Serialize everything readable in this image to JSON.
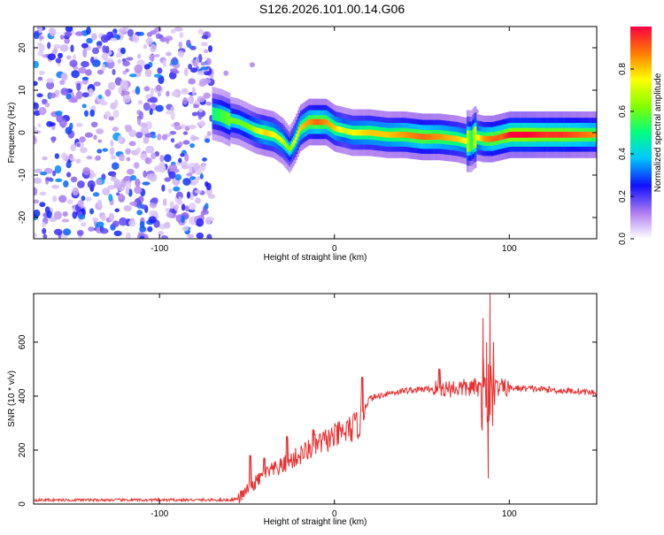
{
  "title": "S126.2026.101.00.14.G06",
  "chart_data": [
    {
      "type": "heatmap",
      "name": "spectrogram",
      "xlabel": "Height of straight line (km)",
      "ylabel": "Frequency (Hz)",
      "xlim": [
        -172,
        150
      ],
      "ylim": [
        -25,
        25
      ],
      "x_ticks": [
        -100,
        0,
        100
      ],
      "x_tick_labels": [
        "-100",
        "0",
        "100"
      ],
      "y_ticks": [
        -20,
        -10,
        0,
        10,
        20
      ],
      "y_tick_labels": [
        "-20",
        "-10",
        "0",
        "10",
        "20"
      ],
      "colorbar": {
        "label": "Normalized spectral amplitude",
        "range": [
          0,
          1
        ],
        "ticks": [
          0.0,
          0.2,
          0.4,
          0.6,
          0.8
        ],
        "tick_labels": [
          "0.0",
          "0.2",
          "0.4",
          "0.6",
          "0.8"
        ]
      },
      "noise_region_x": [
        -172,
        -70
      ],
      "ridge": {
        "x": [
          -70,
          -65,
          -60,
          -55,
          -50,
          -45,
          -40,
          -35,
          -30,
          -26,
          -23,
          -20,
          -15,
          -10,
          -5,
          0,
          5,
          10,
          20,
          30,
          40,
          50,
          60,
          70,
          75,
          78,
          80,
          85,
          90,
          95,
          100,
          110,
          120,
          130,
          140,
          150
        ],
        "freq": [
          4.5,
          4,
          3,
          2.5,
          1.5,
          0.5,
          0,
          -0.5,
          -2,
          -4,
          -2,
          1,
          2.5,
          2.5,
          2.5,
          1,
          0.5,
          0,
          0,
          -0.5,
          -0.5,
          -1,
          -1,
          -1.5,
          -2,
          -2,
          -1,
          -1.5,
          -1.5,
          -1,
          -0.5,
          -0.5,
          -0.5,
          -0.5,
          -0.5,
          -0.5
        ],
        "amplitude": [
          0.5,
          0.55,
          0.6,
          0.6,
          0.6,
          0.7,
          0.8,
          0.75,
          0.7,
          0.6,
          0.75,
          0.8,
          0.85,
          0.9,
          0.85,
          0.8,
          0.7,
          0.75,
          0.8,
          0.8,
          0.85,
          0.9,
          0.85,
          0.8,
          0.75,
          0.5,
          0.7,
          0.85,
          0.9,
          0.9,
          1.0,
          1.0,
          0.95,
          0.95,
          0.9,
          0.85
        ]
      }
    },
    {
      "type": "line",
      "name": "snr",
      "xlabel": "Height of straight line (km)",
      "ylabel": "SNR (10 * v/v)",
      "xlim": [
        -172,
        150
      ],
      "ylim": [
        0,
        780
      ],
      "x_ticks": [
        -100,
        0,
        100
      ],
      "x_tick_labels": [
        "-100",
        "0",
        "100"
      ],
      "y_ticks": [
        0,
        200,
        400,
        600
      ],
      "y_tick_labels": [
        "0",
        "200",
        "400",
        "600"
      ],
      "color": "#e83030",
      "trend": {
        "x": [
          -172,
          -100,
          -60,
          -55,
          -50,
          -45,
          -40,
          -30,
          -20,
          -10,
          0,
          10,
          15,
          16,
          20,
          30,
          40,
          50,
          60,
          70,
          80,
          85,
          90,
          95,
          100,
          110,
          120,
          130,
          140,
          150
        ],
        "y": [
          15,
          15,
          15,
          20,
          50,
          80,
          110,
          140,
          180,
          220,
          250,
          280,
          300,
          340,
          390,
          410,
          420,
          425,
          428,
          430,
          430,
          432,
          432,
          430,
          430,
          428,
          425,
          420,
          418,
          412
        ]
      },
      "spikes": {
        "x": [
          -48,
          -40,
          -27,
          -12,
          16,
          60,
          85,
          87,
          89,
          88,
          91
        ],
        "y": [
          180,
          170,
          250,
          275,
          470,
          500,
          690,
          600,
          780,
          95,
          600
        ]
      }
    }
  ]
}
